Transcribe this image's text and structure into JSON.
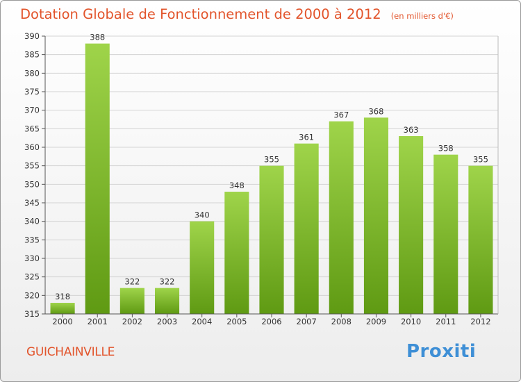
{
  "chart_data": {
    "type": "bar",
    "title": "Dotation Globale de Fonctionnement de 2000 à 2012",
    "subtitle": "(en milliers d'€)",
    "categories": [
      "2000",
      "2001",
      "2002",
      "2003",
      "2004",
      "2005",
      "2006",
      "2007",
      "2008",
      "2009",
      "2010",
      "2011",
      "2012"
    ],
    "values": [
      318,
      388,
      322,
      322,
      340,
      348,
      355,
      361,
      367,
      368,
      363,
      358,
      355
    ],
    "ylim": [
      315,
      390
    ],
    "yticks": [
      315,
      320,
      325,
      330,
      335,
      340,
      345,
      350,
      355,
      360,
      365,
      370,
      375,
      380,
      385,
      390
    ],
    "grid": true,
    "colors": {
      "bar_light": "#9fd44a",
      "bar_dark": "#5f9a13",
      "grid": "#d3d3d3",
      "text": "#333333",
      "title": "#e2542b"
    }
  },
  "footer": {
    "commune": "GUICHAINVILLE",
    "logo_text": "Proxiti"
  }
}
